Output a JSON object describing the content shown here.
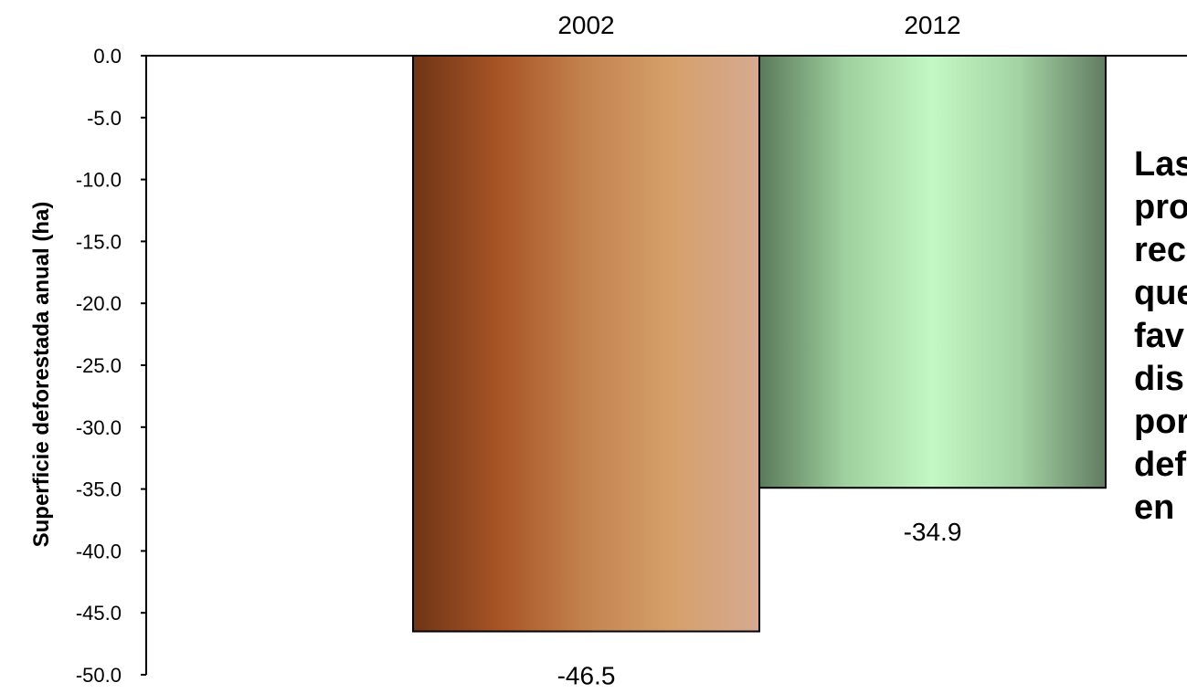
{
  "chart_data": {
    "type": "bar",
    "categories": [
      "2002",
      "2012"
    ],
    "values": [
      -46.5,
      -34.9
    ],
    "data_labels": [
      "-46.5",
      "-34.9"
    ],
    "title": "",
    "xlabel": "",
    "ylabel": "Superficie deforestada anual (ha)",
    "ylim": [
      -50.0,
      0.0
    ],
    "yticks": [
      0.0,
      -5.0,
      -10.0,
      -15.0,
      -20.0,
      -25.0,
      -30.0,
      -35.0,
      -40.0,
      -45.0,
      -50.0
    ],
    "ytick_labels": [
      "0.0",
      "-5.0",
      "-10.0",
      "-15.0",
      "-20.0",
      "-25.0",
      "-30.0",
      "-35.0",
      "-40.0",
      "-45.0",
      "-50.0"
    ],
    "category_axis_position": "top",
    "grid": false,
    "legend": "none",
    "bar_colors": [
      {
        "stops": [
          "#6e3516",
          "#a85426",
          "#c3834f",
          "#d6a06b",
          "#d6aa92"
        ]
      },
      {
        "stops": [
          "#5a7a5a",
          "#9fd19f",
          "#c3f7c3",
          "#a3d3a3",
          "#627b62"
        ]
      }
    ]
  },
  "annotation": {
    "lines": [
      "Las",
      "pro",
      "rec",
      "que",
      "fav",
      "dis",
      "por",
      "def",
      "en"
    ]
  }
}
